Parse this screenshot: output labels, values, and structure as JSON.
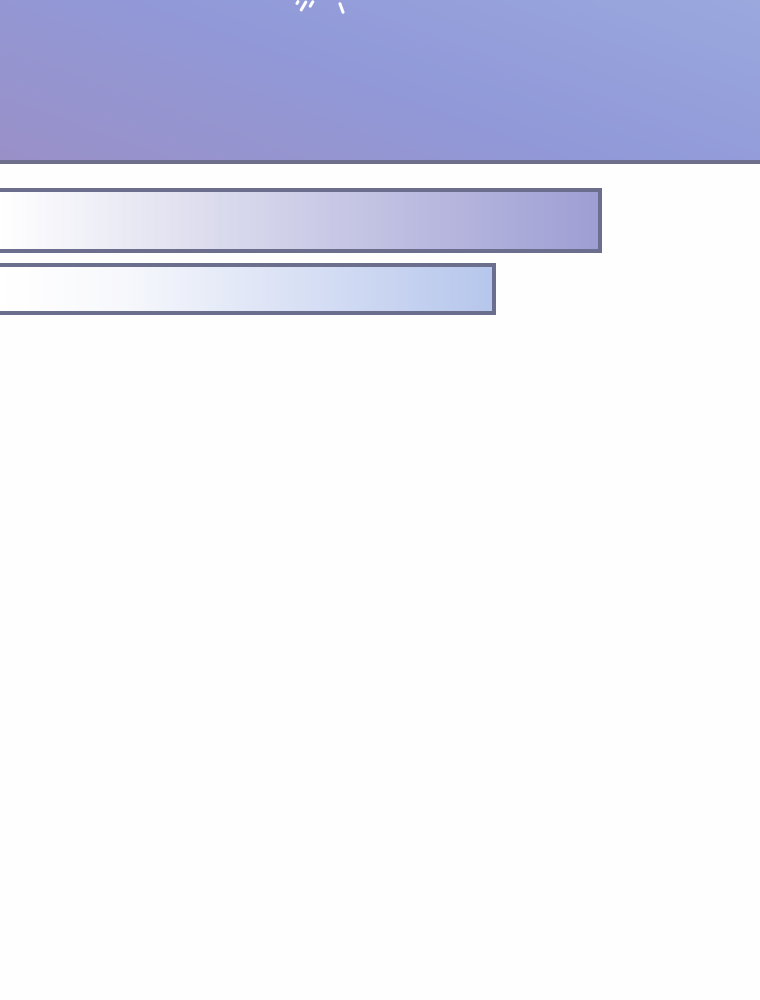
{
  "colors": {
    "sky_left": "#9a90c8",
    "sky_right": "#9aa8de",
    "border": "#6b6e8c",
    "bar1_end": "#9e9ed4",
    "bar2_end": "#b6c6ec",
    "background": "#fefefe"
  }
}
